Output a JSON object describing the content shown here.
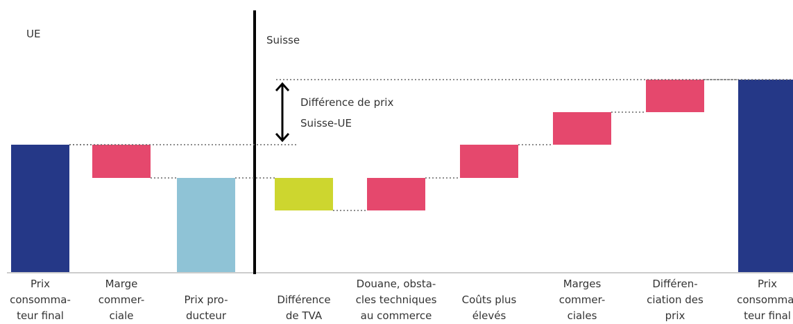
{
  "chart_data": {
    "type": "waterfall",
    "sections": [
      "UE",
      "Suisse"
    ],
    "annotation": "Différence de prix\nSuisse-UE",
    "categories": [
      "Prix\nconsomma-\nteur final",
      "Marge\ncommer-\nciale",
      "Prix pro-\nducteur",
      "Différence\nde TVA",
      "Douane, obsta-\ncles techniques\nau commerce",
      "Coûts plus\nélevés",
      "Marges\ncommer-\nciales",
      "Différen-\nciation des\nprix",
      "Prix\nconsomma-\nteur final"
    ],
    "values": [
      184,
      -48,
      136,
      -47,
      47,
      48,
      47,
      47,
      278
    ],
    "totals": [
      true,
      false,
      true,
      false,
      false,
      false,
      false,
      false,
      true
    ],
    "colors": [
      "#253887",
      "#e5486d",
      "#8fc3d6",
      "#cdd62f",
      "#e5486d",
      "#e5486d",
      "#e5486d",
      "#e5486d",
      "#253887"
    ]
  }
}
